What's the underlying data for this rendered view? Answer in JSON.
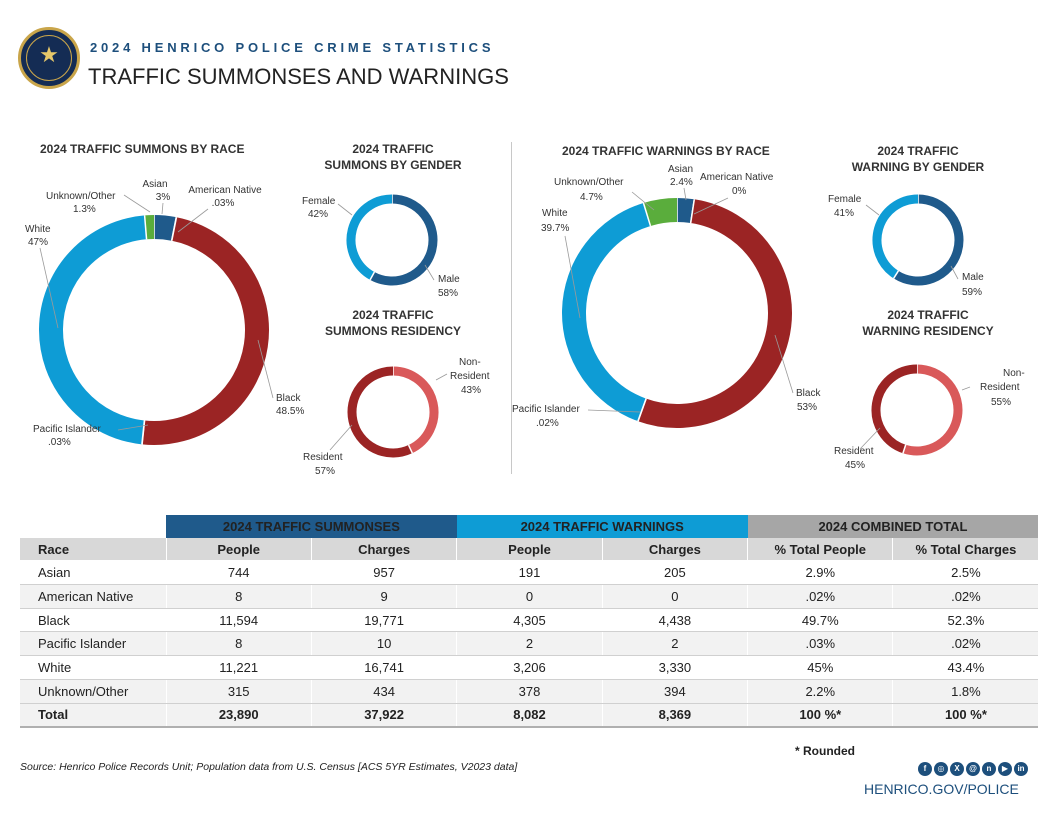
{
  "header": {
    "kicker": "2024 HENRICO POLICE CRIME STATISTICS",
    "title": "TRAFFIC SUMMONSES AND WARNINGS",
    "logo_icon": "police-badge-icon"
  },
  "chart_data": [
    {
      "type": "pie",
      "title": "2024 TRAFFIC SUMMONS BY RACE",
      "slices": [
        {
          "label": "Asian",
          "value_label": "3%",
          "value": 3.1,
          "color": "#1f5a8b"
        },
        {
          "label": "American Native",
          "value_label": ".03%",
          "value": 0.03,
          "color": "#a6a6a6"
        },
        {
          "label": "Black",
          "value_label": "48.5%",
          "value": 48.5,
          "color": "#9b2424"
        },
        {
          "label": "Pacific Islander",
          "value_label": ".03%",
          "value": 0.03,
          "color": "#7a7a7a"
        },
        {
          "label": "White",
          "value_label": "47%",
          "value": 47.0,
          "color": "#0e9cd5"
        },
        {
          "label": "Unknown/Other",
          "value_label": "1.3%",
          "value": 1.3,
          "color": "#5aad3c"
        }
      ]
    },
    {
      "type": "pie",
      "title_lines": [
        "2024 TRAFFIC",
        "SUMMONS BY GENDER"
      ],
      "slices": [
        {
          "label": "Male",
          "value_label": "58%",
          "value": 58,
          "color": "#1f5a8b"
        },
        {
          "label": "Female",
          "value_label": "42%",
          "value": 42,
          "color": "#0e9cd5"
        }
      ]
    },
    {
      "type": "pie",
      "title_lines": [
        "2024 TRAFFIC",
        "SUMMONS RESIDENCY"
      ],
      "slices": [
        {
          "label": "Non-Resident",
          "value_label": "43%",
          "value": 43,
          "color": "#d9595a"
        },
        {
          "label": "Resident",
          "value_label": "57%",
          "value": 57,
          "color": "#9b2424"
        }
      ]
    },
    {
      "type": "pie",
      "title": "2024 TRAFFIC WARNINGS BY RACE",
      "slices": [
        {
          "label": "Asian",
          "value_label": "2.4%",
          "value": 2.4,
          "color": "#1f5a8b"
        },
        {
          "label": "American Native",
          "value_label": "0%",
          "value": 0.0,
          "color": "#a6a6a6"
        },
        {
          "label": "Black",
          "value_label": "53%",
          "value": 53.0,
          "color": "#9b2424"
        },
        {
          "label": "Pacific Islander",
          "value_label": ".02%",
          "value": 0.02,
          "color": "#7a7a7a"
        },
        {
          "label": "White",
          "value_label": "39.7%",
          "value": 39.7,
          "color": "#0e9cd5"
        },
        {
          "label": "Unknown/Other",
          "value_label": "4.7%",
          "value": 4.7,
          "color": "#5aad3c"
        }
      ]
    },
    {
      "type": "pie",
      "title_lines": [
        "2024 TRAFFIC",
        "WARNING BY GENDER"
      ],
      "slices": [
        {
          "label": "Male",
          "value_label": "59%",
          "value": 59,
          "color": "#1f5a8b"
        },
        {
          "label": "Female",
          "value_label": "41%",
          "value": 41,
          "color": "#0e9cd5"
        }
      ]
    },
    {
      "type": "pie",
      "title_lines": [
        "2024 TRAFFIC",
        "WARNING RESIDENCY"
      ],
      "slices": [
        {
          "label": "Non-Resident",
          "value_label": "55%",
          "value": 55,
          "color": "#d9595a"
        },
        {
          "label": "Resident",
          "value_label": "45%",
          "value": 45,
          "color": "#9b2424"
        }
      ]
    },
    {
      "type": "table",
      "group_headers": [
        "2024 TRAFFIC SUMMONSES",
        "2024 TRAFFIC  WARNINGS",
        "2024 COMBINED TOTAL"
      ],
      "columns": [
        "Race",
        "People",
        "Charges",
        "People",
        "Charges",
        "% Total People",
        "% Total Charges"
      ],
      "rows": [
        [
          "Asian",
          "744",
          "957",
          "191",
          "205",
          "2.9%",
          "2.5%"
        ],
        [
          "American Native",
          "8",
          "9",
          "0",
          "0",
          ".02%",
          ".02%"
        ],
        [
          "Black",
          "11,594",
          "19,771",
          "4,305",
          "4,438",
          "49.7%",
          "52.3%"
        ],
        [
          "Pacific Islander",
          "8",
          "10",
          "2",
          "2",
          ".03%",
          ".02%"
        ],
        [
          "White",
          "11,221",
          "16,741",
          "3,206",
          "3,330",
          "45%",
          "43.4%"
        ],
        [
          "Unknown/Other",
          "315",
          "434",
          "378",
          "394",
          "2.2%",
          "1.8%"
        ]
      ],
      "total": [
        "Total",
        "23,890",
        "37,922",
        "8,082",
        "8,369",
        "100 %*",
        "100 %*"
      ]
    }
  ],
  "footer": {
    "note": "* Rounded",
    "source": "Source:  Henrico Police Records Unit; Population data from U.S. Census [ACS 5YR Estimates, V2023 data]",
    "social": [
      "facebook-icon",
      "instagram-icon",
      "x-icon",
      "threads-icon",
      "nextdoor-icon",
      "youtube-icon",
      "linkedin-icon"
    ],
    "website": "HENRICO.GOV/POLICE"
  }
}
